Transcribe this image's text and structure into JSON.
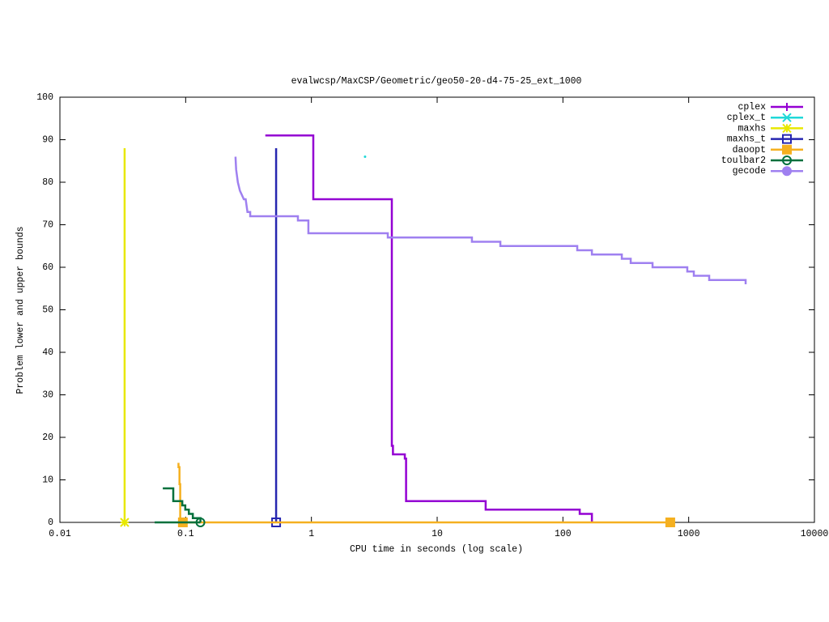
{
  "chart_data": {
    "type": "line",
    "title": "evalwcsp/MaxCSP/Geometric/geo50-20-d4-75-25_ext_1000",
    "x_label": "CPU time in seconds (log scale)",
    "y_label": "Problem lower and upper bounds",
    "xscale": "log",
    "xlim": [
      0.01,
      10000
    ],
    "xticks": [
      0.01,
      0.1,
      1,
      10,
      100,
      1000,
      10000
    ],
    "ylim": [
      0,
      100
    ],
    "yticks": [
      0,
      10,
      20,
      30,
      40,
      50,
      60,
      70,
      80,
      90,
      100
    ],
    "legend": "top-right",
    "series": [
      {
        "name": "cplex",
        "color": "#9400d3",
        "marker": "plus",
        "x": [
          0.43,
          1.035,
          1.035,
          4.36,
          4.36,
          4.45,
          4.45,
          5.53,
          5.53,
          5.66,
          5.66,
          24.3,
          24.3,
          136,
          136,
          170,
          170
        ],
        "y": [
          91,
          91,
          76,
          76,
          18,
          18,
          16,
          16,
          15,
          15,
          5,
          5,
          3,
          3,
          2,
          2,
          0
        ],
        "point_x": [],
        "point_y": []
      },
      {
        "name": "cplex_t",
        "color": "#20d8d8",
        "marker": "cross",
        "x": [],
        "y": [],
        "point_x": [
          2.67
        ],
        "point_y": [
          86
        ]
      },
      {
        "name": "maxhs",
        "color": "#e8e800",
        "marker": "star",
        "x": [
          0.0327,
          0.0327
        ],
        "y": [
          88,
          0
        ],
        "point_x": [
          0.0327
        ],
        "point_y": [
          0
        ]
      },
      {
        "name": "maxhs_t",
        "color": "#2626b0",
        "marker": "square-open",
        "x": [
          0.524,
          0.524
        ],
        "y": [
          88,
          0
        ],
        "point_x": [
          0.524
        ],
        "point_y": [
          0
        ]
      },
      {
        "name": "daoopt",
        "color": "#f5b020",
        "marker": "square",
        "x": [
          0.0877,
          0.0877,
          0.0893,
          0.0893,
          0.0905,
          0.0905,
          714
        ],
        "y": [
          14,
          13,
          13,
          9,
          9,
          0,
          0
        ],
        "point_x": [
          0.095,
          714
        ],
        "point_y": [
          0,
          0
        ]
      },
      {
        "name": "toulbar2",
        "color": "#00703c",
        "marker": "circle-open",
        "x": [
          0.0658,
          0.0797,
          0.0797,
          0.094,
          0.094,
          0.0993,
          0.0993,
          0.106,
          0.106,
          0.114,
          0.114,
          0.131,
          0.131,
          null,
          0.0567,
          0.131
        ],
        "y": [
          8,
          8,
          5,
          5,
          4,
          4,
          3,
          3,
          2,
          2,
          1,
          1,
          0,
          null,
          0,
          0
        ],
        "point_x": [
          0.131
        ],
        "point_y": [
          0
        ]
      },
      {
        "name": "gecode",
        "color": "#9f80f0",
        "marker": "circle",
        "x": [
          0.249,
          0.252,
          0.26,
          0.27,
          0.28,
          0.29,
          0.3,
          0.31,
          0.326,
          0.326,
          0.781,
          0.781,
          0.946,
          0.946,
          4.05,
          4.05,
          18.9,
          18.9,
          31.8,
          31.8,
          130,
          130,
          170,
          170,
          294,
          294,
          346,
          346,
          516,
          516,
          975,
          975,
          1099,
          1099,
          1456,
          1456,
          2838,
          2838
        ],
        "y": [
          86,
          83,
          80,
          78,
          77,
          76,
          76,
          73,
          73,
          72,
          72,
          71,
          71,
          68,
          68,
          67,
          67,
          66,
          66,
          65,
          65,
          64,
          64,
          63,
          63,
          62,
          62,
          61,
          61,
          60,
          60,
          59,
          59,
          58,
          58,
          57,
          57,
          56
        ],
        "point_x": [],
        "point_y": []
      }
    ]
  }
}
